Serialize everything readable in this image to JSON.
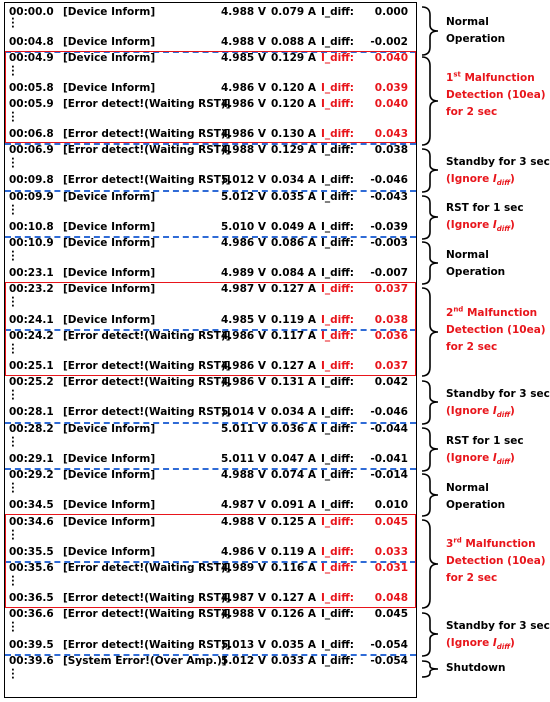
{
  "rows": [
    {
      "time": "00:00.0",
      "msg": "[Device Inform]",
      "volt": "4.988 V",
      "amp": "0.079 A",
      "dlabel": "I_diff:",
      "dval": "0.000",
      "red": false
    },
    {
      "time": "00:04.8",
      "msg": "[Device Inform]",
      "volt": "4.988 V",
      "amp": "0.088 A",
      "dlabel": "I_diff:",
      "dval": "-0.002",
      "red": false
    },
    {
      "time": "00:04.9",
      "msg": "[Device Inform]",
      "volt": "4.985 V",
      "amp": "0.129 A",
      "dlabel": "I_diff:",
      "dval": "0.040",
      "red": true
    },
    {
      "time": "00:05.8",
      "msg": "[Device Inform]",
      "volt": "4.986 V",
      "amp": "0.120 A",
      "dlabel": "I_diff:",
      "dval": "0.039",
      "red": true
    },
    {
      "time": "00:05.9",
      "msg": "[Error detect!(Waiting RST)]",
      "volt": "4.986 V",
      "amp": "0.120 A",
      "dlabel": "I_diff:",
      "dval": "0.040",
      "red": true
    },
    {
      "time": "00:06.8",
      "msg": "[Error detect!(Waiting RST)]",
      "volt": "4.986 V",
      "amp": "0.130 A",
      "dlabel": "I_diff:",
      "dval": "0.043",
      "red": true
    },
    {
      "time": "00:06.9",
      "msg": "[Error detect!(Waiting RST)]",
      "volt": "4.988 V",
      "amp": "0.129 A",
      "dlabel": "I_diff:",
      "dval": "0.038",
      "red": false
    },
    {
      "time": "00:09.8",
      "msg": "[Error detect!(Waiting RST)]",
      "volt": "5.012 V",
      "amp": "0.034 A",
      "dlabel": "I_diff:",
      "dval": "-0.046",
      "red": false
    },
    {
      "time": "00:09.9",
      "msg": "[Device Inform]",
      "volt": "5.012 V",
      "amp": "0.035 A",
      "dlabel": "I_diff:",
      "dval": "-0.043",
      "red": false
    },
    {
      "time": "00:10.8",
      "msg": "[Device Inform]",
      "volt": "5.010 V",
      "amp": "0.049 A",
      "dlabel": "I_diff:",
      "dval": "-0.039",
      "red": false
    },
    {
      "time": "00:10.9",
      "msg": "[Device Inform]",
      "volt": "4.986 V",
      "amp": "0.086 A",
      "dlabel": "I_diff:",
      "dval": "-0.003",
      "red": false
    },
    {
      "time": "00:23.1",
      "msg": "[Device Inform]",
      "volt": "4.989 V",
      "amp": "0.084 A",
      "dlabel": "I_diff:",
      "dval": "-0.007",
      "red": false
    },
    {
      "time": "00:23.2",
      "msg": "[Device Inform]",
      "volt": "4.987 V",
      "amp": "0.127 A",
      "dlabel": "I_diff:",
      "dval": "0.037",
      "red": true
    },
    {
      "time": "00:24.1",
      "msg": "[Device Inform]",
      "volt": "4.985 V",
      "amp": "0.119 A",
      "dlabel": "I_diff:",
      "dval": "0.038",
      "red": true
    },
    {
      "time": "00:24.2",
      "msg": "[Error detect!(Waiting RST)]",
      "volt": "4.986 V",
      "amp": "0.117 A",
      "dlabel": "I_diff:",
      "dval": "0.036",
      "red": true
    },
    {
      "time": "00:25.1",
      "msg": "[Error detect!(Waiting RST)]",
      "volt": "4.986 V",
      "amp": "0.127 A",
      "dlabel": "I_diff:",
      "dval": "0.037",
      "red": true
    },
    {
      "time": "00:25.2",
      "msg": "[Error detect!(Waiting RST)]",
      "volt": "4.986 V",
      "amp": "0.131 A",
      "dlabel": "I_diff:",
      "dval": "0.042",
      "red": false
    },
    {
      "time": "00:28.1",
      "msg": "[Error detect!(Waiting RST)]",
      "volt": "5.014 V",
      "amp": "0.034 A",
      "dlabel": "I_diff:",
      "dval": "-0.046",
      "red": false
    },
    {
      "time": "00:28.2",
      "msg": "[Device Inform]",
      "volt": "5.011 V",
      "amp": "0.036 A",
      "dlabel": "I_diff:",
      "dval": "-0.044",
      "red": false
    },
    {
      "time": "00:29.1",
      "msg": "[Device Inform]",
      "volt": "5.011 V",
      "amp": "0.047 A",
      "dlabel": "I_diff:",
      "dval": "-0.041",
      "red": false
    },
    {
      "time": "00:29.2",
      "msg": "[Device Inform]",
      "volt": "4.988 V",
      "amp": "0.074 A",
      "dlabel": "I_diff:",
      "dval": "-0.014",
      "red": false
    },
    {
      "time": "00:34.5",
      "msg": "[Device Inform]",
      "volt": "4.987 V",
      "amp": "0.091 A",
      "dlabel": "I_diff:",
      "dval": "0.010",
      "red": false
    },
    {
      "time": "00:34.6",
      "msg": "[Device Inform]",
      "volt": "4.988 V",
      "amp": "0.125 A",
      "dlabel": "I_diff:",
      "dval": "0.045",
      "red": true
    },
    {
      "time": "00:35.5",
      "msg": "[Device Inform]",
      "volt": "4.986 V",
      "amp": "0.119 A",
      "dlabel": "I_diff:",
      "dval": "0.033",
      "red": true
    },
    {
      "time": "00:35.6",
      "msg": "[Error detect!(Waiting RST)]",
      "volt": "4.989 V",
      "amp": "0.116 A",
      "dlabel": "I_diff:",
      "dval": "0.031",
      "red": true
    },
    {
      "time": "00:36.5",
      "msg": "[Error detect!(Waiting RST)]",
      "volt": "4.987 V",
      "amp": "0.127 A",
      "dlabel": "I_diff:",
      "dval": "0.048",
      "red": true
    },
    {
      "time": "00:36.6",
      "msg": "[Error detect!(Waiting RST)]",
      "volt": "4.988 V",
      "amp": "0.126 A",
      "dlabel": "I_diff:",
      "dval": "0.045",
      "red": false
    },
    {
      "time": "00:39.5",
      "msg": "[Error detect!(Waiting RST)]",
      "volt": "5.013 V",
      "amp": "0.035 A",
      "dlabel": "I_diff:",
      "dval": "-0.054",
      "red": false
    },
    {
      "time": "00:39.6",
      "msg": "[System Error!(Over Amp.)]",
      "volt": "5.012 V",
      "amp": "0.033 A",
      "dlabel": "I_diff:",
      "dval": "-0.054",
      "red": false
    }
  ],
  "notes": {
    "normal1": {
      "l1": "Normal",
      "l2": "Operation"
    },
    "malf1": {
      "ord": "1",
      "sup": "st",
      "l1": " Malfunction",
      "l2": "Detection (10ea)",
      "l3": "for 2 sec"
    },
    "standby1": {
      "l1": "Standby for 3 sec",
      "l2a": "(Ignore ",
      "l2i": "I",
      "l2s": "diff",
      "l2b": ")"
    },
    "rst1": {
      "l1": "RST for 1 sec",
      "l2a": "(Ignore ",
      "l2i": "I",
      "l2s": "diff",
      "l2b": ")"
    },
    "normal2": {
      "l1": "Normal",
      "l2": "Operation"
    },
    "malf2": {
      "ord": "2",
      "sup": "nd",
      "l1": " Malfunction",
      "l2": "Detection (10ea)",
      "l3": "for 2 sec"
    },
    "standby2": {
      "l1": "Standby for 3 sec",
      "l2a": "(Ignore ",
      "l2i": "I",
      "l2s": "diff",
      "l2b": ")"
    },
    "rst2": {
      "l1": "RST for 1 sec",
      "l2a": "(Ignore ",
      "l2i": "I",
      "l2s": "diff",
      "l2b": ")"
    },
    "normal3": {
      "l1": "Normal",
      "l2": "Operation"
    },
    "malf3": {
      "ord": "3",
      "sup": "rd",
      "l1": " Malfunction",
      "l2": "Detection (10ea)",
      "l3": "for 2 sec"
    },
    "standby3": {
      "l1": "Standby for 3 sec",
      "l2a": "(Ignore ",
      "l2i": "I",
      "l2s": "diff",
      "l2b": ")"
    },
    "shutdown": {
      "l1": "Shutdown"
    }
  },
  "colors": {
    "highlight": "#e8151b",
    "separator": "#2f6bd6",
    "text": "#000000"
  }
}
